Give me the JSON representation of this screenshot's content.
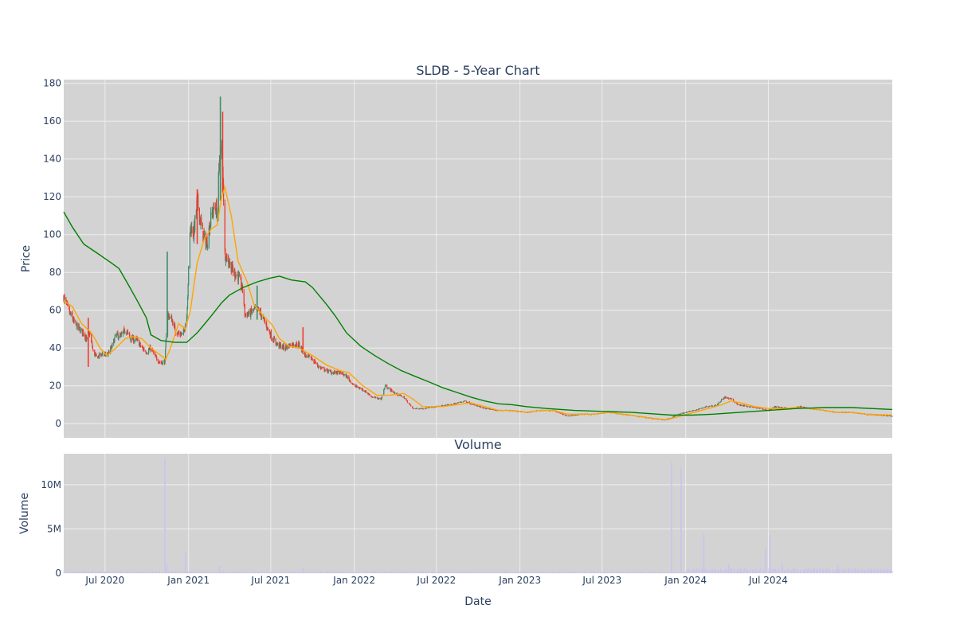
{
  "chart_data": [
    {
      "type": "candlestick",
      "title": "SLDB - 5-Year Chart",
      "xlabel": "",
      "ylabel": "Price",
      "ylim": [
        -7.5,
        182
      ],
      "xlim": [
        "2020-04-01",
        "2025-03-31"
      ],
      "yticks": [
        0,
        20,
        40,
        60,
        80,
        100,
        120,
        140,
        160,
        180
      ],
      "grid": true,
      "colors": {
        "increasing": "#3d8c6a",
        "decreasing": "#ef3b2c",
        "ma_short": "#ffa500",
        "ma_long": "#008000",
        "plot_bg": "#d3d3d3",
        "grid": "#eeeeee",
        "text": "#2a3f5f"
      },
      "close_path": [
        [
          "2020-04-01",
          67
        ],
        [
          "2020-04-08",
          62
        ],
        [
          "2020-04-15",
          58
        ],
        [
          "2020-04-25",
          53
        ],
        [
          "2020-05-05",
          50
        ],
        [
          "2020-05-15",
          48
        ],
        [
          "2020-05-22",
          44
        ],
        [
          "2020-05-28",
          48
        ],
        [
          "2020-06-05",
          38
        ],
        [
          "2020-06-12",
          35
        ],
        [
          "2020-06-25",
          37
        ],
        [
          "2020-07-05",
          36
        ],
        [
          "2020-07-15",
          40
        ],
        [
          "2020-07-25",
          47
        ],
        [
          "2020-08-05",
          46
        ],
        [
          "2020-08-15",
          50
        ],
        [
          "2020-08-25",
          45
        ],
        [
          "2020-09-10",
          44
        ],
        [
          "2020-09-20",
          40
        ],
        [
          "2020-10-01",
          38
        ],
        [
          "2020-10-10",
          40
        ],
        [
          "2020-10-20",
          35
        ],
        [
          "2020-11-01",
          32
        ],
        [
          "2020-11-10",
          33
        ],
        [
          "2020-11-15",
          58
        ],
        [
          "2020-11-25",
          55
        ],
        [
          "2020-12-05",
          48
        ],
        [
          "2020-12-20",
          47
        ],
        [
          "2020-12-28",
          57
        ],
        [
          "2021-01-05",
          105
        ],
        [
          "2021-01-12",
          100
        ],
        [
          "2021-01-20",
          118
        ],
        [
          "2021-02-01",
          100
        ],
        [
          "2021-02-10",
          95
        ],
        [
          "2021-02-20",
          110
        ],
        [
          "2021-02-28",
          115
        ],
        [
          "2021-03-05",
          112
        ],
        [
          "2021-03-10",
          140
        ],
        [
          "2021-03-15",
          145
        ],
        [
          "2021-03-18",
          130
        ],
        [
          "2021-03-22",
          90
        ],
        [
          "2021-04-01",
          85
        ],
        [
          "2021-04-10",
          80
        ],
        [
          "2021-04-20",
          78
        ],
        [
          "2021-05-01",
          70
        ],
        [
          "2021-05-05",
          58
        ],
        [
          "2021-05-15",
          58
        ],
        [
          "2021-05-25",
          60
        ],
        [
          "2021-06-05",
          60
        ],
        [
          "2021-06-15",
          55
        ],
        [
          "2021-06-25",
          50
        ],
        [
          "2021-07-05",
          45
        ],
        [
          "2021-07-15",
          42
        ],
        [
          "2021-08-01",
          40
        ],
        [
          "2021-08-15",
          42
        ],
        [
          "2021-09-01",
          42
        ],
        [
          "2021-09-15",
          36
        ],
        [
          "2021-10-01",
          34
        ],
        [
          "2021-10-15",
          30
        ],
        [
          "2021-11-01",
          28
        ],
        [
          "2021-11-15",
          27
        ],
        [
          "2021-12-01",
          27
        ],
        [
          "2021-12-15",
          25
        ],
        [
          "2022-01-01",
          20
        ],
        [
          "2022-01-20",
          18
        ],
        [
          "2022-02-10",
          14
        ],
        [
          "2022-03-01",
          13
        ],
        [
          "2022-03-10",
          20
        ],
        [
          "2022-04-01",
          16
        ],
        [
          "2022-04-20",
          14
        ],
        [
          "2022-05-10",
          8
        ],
        [
          "2022-06-01",
          8
        ],
        [
          "2022-07-01",
          9
        ],
        [
          "2022-08-01",
          10
        ],
        [
          "2022-09-01",
          12
        ],
        [
          "2022-09-20",
          10
        ],
        [
          "2022-10-15",
          8
        ],
        [
          "2022-11-15",
          7
        ],
        [
          "2022-12-15",
          7
        ],
        [
          "2023-01-15",
          6
        ],
        [
          "2023-02-15",
          7
        ],
        [
          "2023-03-15",
          7
        ],
        [
          "2023-04-15",
          4
        ],
        [
          "2023-05-15",
          5
        ],
        [
          "2023-06-15",
          5
        ],
        [
          "2023-07-15",
          6
        ],
        [
          "2023-08-15",
          5
        ],
        [
          "2023-09-15",
          4
        ],
        [
          "2023-10-15",
          3
        ],
        [
          "2023-11-15",
          2
        ],
        [
          "2023-12-01",
          3
        ],
        [
          "2023-12-15",
          5
        ],
        [
          "2024-01-01",
          6
        ],
        [
          "2024-01-20",
          7
        ],
        [
          "2024-02-15",
          9
        ],
        [
          "2024-03-10",
          10
        ],
        [
          "2024-03-25",
          14
        ],
        [
          "2024-04-10",
          13
        ],
        [
          "2024-04-25",
          10
        ],
        [
          "2024-05-20",
          9
        ],
        [
          "2024-06-15",
          8
        ],
        [
          "2024-07-01",
          7
        ],
        [
          "2024-07-15",
          9
        ],
        [
          "2024-08-15",
          8
        ],
        [
          "2024-09-10",
          9
        ],
        [
          "2024-10-01",
          8
        ],
        [
          "2024-11-01",
          7
        ],
        [
          "2024-12-01",
          6
        ],
        [
          "2025-01-01",
          6
        ],
        [
          "2025-02-01",
          5
        ],
        [
          "2025-03-31",
          4
        ]
      ],
      "spikes": [
        {
          "date": "2020-05-25",
          "high": 56,
          "low": 30
        },
        {
          "date": "2020-11-15",
          "high": 91,
          "low": 47
        },
        {
          "date": "2021-01-20",
          "high": 124,
          "low": 95
        },
        {
          "date": "2021-03-12",
          "high": 173,
          "low": 118
        },
        {
          "date": "2021-03-17",
          "high": 165,
          "low": 122
        },
        {
          "date": "2021-06-01",
          "high": 73,
          "low": 55
        },
        {
          "date": "2021-09-10",
          "high": 51,
          "low": 38
        }
      ],
      "ma_short": [
        [
          "2020-04-01",
          65
        ],
        [
          "2020-04-20",
          62
        ],
        [
          "2020-05-10",
          53
        ],
        [
          "2020-06-01",
          48
        ],
        [
          "2020-06-20",
          40
        ],
        [
          "2020-07-05",
          36
        ],
        [
          "2020-07-25",
          40
        ],
        [
          "2020-08-15",
          45
        ],
        [
          "2020-09-01",
          46
        ],
        [
          "2020-09-20",
          45
        ],
        [
          "2020-10-10",
          40
        ],
        [
          "2020-11-01",
          36
        ],
        [
          "2020-11-12",
          34
        ],
        [
          "2020-11-25",
          42
        ],
        [
          "2020-12-10",
          53
        ],
        [
          "2020-12-25",
          50
        ],
        [
          "2021-01-05",
          60
        ],
        [
          "2021-01-20",
          85
        ],
        [
          "2021-02-05",
          98
        ],
        [
          "2021-02-20",
          103
        ],
        [
          "2021-03-05",
          105
        ],
        [
          "2021-03-15",
          120
        ],
        [
          "2021-03-22",
          125
        ],
        [
          "2021-04-05",
          110
        ],
        [
          "2021-04-20",
          86
        ],
        [
          "2021-05-10",
          75
        ],
        [
          "2021-05-25",
          63
        ],
        [
          "2021-06-15",
          57
        ],
        [
          "2021-07-05",
          52
        ],
        [
          "2021-07-20",
          45
        ],
        [
          "2021-08-10",
          41
        ],
        [
          "2021-09-01",
          40
        ],
        [
          "2021-10-01",
          36
        ],
        [
          "2021-11-01",
          31
        ],
        [
          "2021-12-01",
          28
        ],
        [
          "2021-12-20",
          27
        ],
        [
          "2022-01-20",
          20
        ],
        [
          "2022-02-20",
          15
        ],
        [
          "2022-03-20",
          15
        ],
        [
          "2022-04-20",
          16
        ],
        [
          "2022-05-10",
          13
        ],
        [
          "2022-06-01",
          9
        ],
        [
          "2022-07-15",
          9
        ],
        [
          "2022-08-15",
          10
        ],
        [
          "2022-09-15",
          11
        ],
        [
          "2022-10-15",
          9
        ],
        [
          "2022-11-15",
          7
        ],
        [
          "2022-12-15",
          7
        ],
        [
          "2023-01-15",
          6
        ],
        [
          "2023-02-15",
          7
        ],
        [
          "2023-03-15",
          7
        ],
        [
          "2023-04-15",
          5
        ],
        [
          "2023-05-15",
          5
        ],
        [
          "2023-06-15",
          5
        ],
        [
          "2023-07-15",
          6
        ],
        [
          "2023-08-15",
          5
        ],
        [
          "2023-09-15",
          4
        ],
        [
          "2023-10-15",
          3
        ],
        [
          "2023-11-20",
          2
        ],
        [
          "2023-12-20",
          4
        ],
        [
          "2024-01-20",
          6
        ],
        [
          "2024-02-20",
          8
        ],
        [
          "2024-03-20",
          10
        ],
        [
          "2024-04-10",
          12
        ],
        [
          "2024-05-01",
          11
        ],
        [
          "2024-06-01",
          9
        ],
        [
          "2024-07-01",
          8
        ],
        [
          "2024-08-01",
          8
        ],
        [
          "2024-09-01",
          8.5
        ],
        [
          "2024-10-01",
          8
        ],
        [
          "2024-11-01",
          7
        ],
        [
          "2024-12-01",
          6
        ],
        [
          "2025-01-01",
          6
        ],
        [
          "2025-02-01",
          5
        ],
        [
          "2025-03-31",
          4.5
        ]
      ],
      "ma_long": [
        [
          "2020-04-01",
          112
        ],
        [
          "2020-04-20",
          104
        ],
        [
          "2020-05-15",
          95
        ],
        [
          "2020-06-15",
          90
        ],
        [
          "2020-07-15",
          85
        ],
        [
          "2020-08-01",
          82
        ],
        [
          "2020-08-20",
          74
        ],
        [
          "2020-09-10",
          65
        ],
        [
          "2020-09-30",
          56
        ],
        [
          "2020-10-10",
          47
        ],
        [
          "2020-11-01",
          44
        ],
        [
          "2020-12-01",
          43
        ],
        [
          "2020-12-28",
          43
        ],
        [
          "2021-01-20",
          48
        ],
        [
          "2021-02-20",
          57
        ],
        [
          "2021-03-15",
          64
        ],
        [
          "2021-04-01",
          68
        ],
        [
          "2021-05-01",
          72
        ],
        [
          "2021-06-01",
          75
        ],
        [
          "2021-06-30",
          77
        ],
        [
          "2021-07-20",
          78
        ],
        [
          "2021-08-15",
          76
        ],
        [
          "2021-09-15",
          75
        ],
        [
          "2021-10-01",
          72
        ],
        [
          "2021-11-01",
          63
        ],
        [
          "2021-11-20",
          57
        ],
        [
          "2021-12-15",
          48
        ],
        [
          "2022-01-15",
          41
        ],
        [
          "2022-02-15",
          36
        ],
        [
          "2022-03-15",
          32
        ],
        [
          "2022-04-15",
          28
        ],
        [
          "2022-05-15",
          25
        ],
        [
          "2022-06-15",
          22
        ],
        [
          "2022-07-15",
          19
        ],
        [
          "2022-08-15",
          16.5
        ],
        [
          "2022-09-15",
          14
        ],
        [
          "2022-10-15",
          12
        ],
        [
          "2022-11-15",
          10.5
        ],
        [
          "2022-12-15",
          10
        ],
        [
          "2023-01-15",
          9
        ],
        [
          "2023-03-01",
          8
        ],
        [
          "2023-05-01",
          7
        ],
        [
          "2023-07-01",
          6.5
        ],
        [
          "2023-09-01",
          6
        ],
        [
          "2023-11-01",
          5
        ],
        [
          "2023-12-01",
          4.5
        ],
        [
          "2024-01-15",
          4.5
        ],
        [
          "2024-03-01",
          5
        ],
        [
          "2024-05-01",
          6
        ],
        [
          "2024-07-01",
          7
        ],
        [
          "2024-09-01",
          8
        ],
        [
          "2024-11-01",
          8.5
        ],
        [
          "2025-01-01",
          8.5
        ],
        [
          "2025-03-31",
          7.5
        ]
      ]
    },
    {
      "type": "bar",
      "title": "Volume",
      "xlabel": "Date",
      "ylabel": "Volume",
      "ylim": [
        0,
        13500000
      ],
      "yticks": [
        {
          "value": 0,
          "label": "0"
        },
        {
          "value": 5000000,
          "label": "5M"
        },
        {
          "value": 10000000,
          "label": "10M"
        }
      ],
      "xticks": [
        {
          "date": "2020-07-01",
          "label": "Jul 2020"
        },
        {
          "date": "2021-01-01",
          "label": "Jan 2021"
        },
        {
          "date": "2021-07-01",
          "label": "Jul 2021"
        },
        {
          "date": "2022-01-01",
          "label": "Jan 2022"
        },
        {
          "date": "2022-07-01",
          "label": "Jul 2022"
        },
        {
          "date": "2023-01-01",
          "label": "Jan 2023"
        },
        {
          "date": "2023-07-01",
          "label": "Jul 2023"
        },
        {
          "date": "2024-01-01",
          "label": "Jan 2024"
        },
        {
          "date": "2024-07-01",
          "label": "Jul 2024"
        }
      ],
      "bar_color": "#c8c4ee",
      "base_volume": 200000,
      "spikes": [
        {
          "date": "2020-11-10",
          "value": 13000000
        },
        {
          "date": "2020-11-14",
          "value": 1000000
        },
        {
          "date": "2020-12-25",
          "value": 2500000
        },
        {
          "date": "2021-03-10",
          "value": 800000
        },
        {
          "date": "2021-09-10",
          "value": 600000
        },
        {
          "date": "2023-12-01",
          "value": 12500000
        },
        {
          "date": "2023-12-22",
          "value": 12000000
        },
        {
          "date": "2024-02-10",
          "value": 4500000
        },
        {
          "date": "2024-04-05",
          "value": 1000000
        },
        {
          "date": "2024-06-25",
          "value": 2800000
        },
        {
          "date": "2024-07-05",
          "value": 4300000
        },
        {
          "date": "2024-08-01",
          "value": 1100000
        },
        {
          "date": "2024-12-01",
          "value": 900000
        }
      ]
    }
  ]
}
